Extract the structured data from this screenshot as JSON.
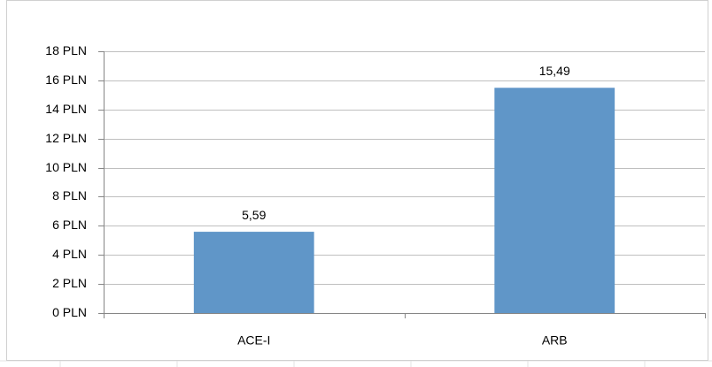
{
  "chart_data": {
    "type": "bar",
    "categories": [
      "ACE-I",
      "ARB"
    ],
    "values": [
      5.59,
      15.49
    ],
    "value_labels": [
      "5,59",
      "15,49"
    ],
    "color": "#6096c8",
    "ylim": [
      0,
      18
    ],
    "yticks": [
      {
        "value": 0,
        "label": "0 PLN"
      },
      {
        "value": 2,
        "label": "2 PLN"
      },
      {
        "value": 4,
        "label": "4 PLN"
      },
      {
        "value": 6,
        "label": "6 PLN"
      },
      {
        "value": 8,
        "label": "8 PLN"
      },
      {
        "value": 10,
        "label": "10 PLN"
      },
      {
        "value": 12,
        "label": "12 PLN"
      },
      {
        "value": 14,
        "label": "14 PLN"
      },
      {
        "value": 16,
        "label": "16 PLN"
      },
      {
        "value": 18,
        "label": "18 PLN"
      }
    ],
    "grid": true
  }
}
